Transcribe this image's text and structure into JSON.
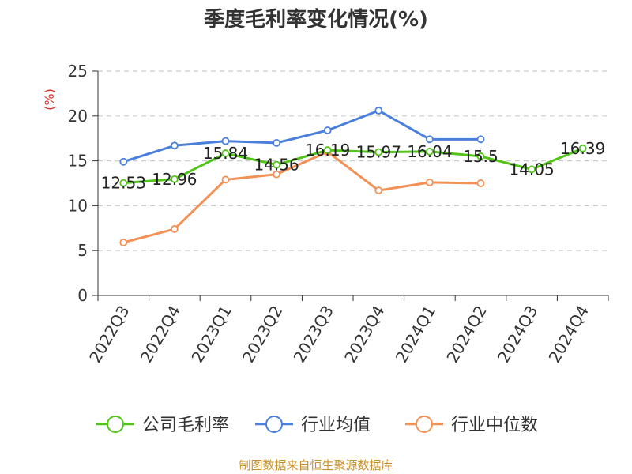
{
  "chart_data": {
    "type": "line",
    "title": "季度毛利率变化情况(%)",
    "ylabel": "(%)",
    "ylim": [
      0,
      25
    ],
    "yticks": [
      0,
      5,
      10,
      15,
      20,
      25
    ],
    "categories": [
      "2022Q3",
      "2022Q4",
      "2023Q1",
      "2023Q2",
      "2023Q3",
      "2023Q4",
      "2024Q1",
      "2024Q2",
      "2024Q3",
      "2024Q4"
    ],
    "grid": true,
    "legend_position": "bottom",
    "series": [
      {
        "name": "公司毛利率",
        "color": "#52c41a",
        "values": [
          12.53,
          12.96,
          15.84,
          14.56,
          16.19,
          15.97,
          16.04,
          15.5,
          14.05,
          16.39
        ],
        "labels": [
          "12.53",
          "12.96",
          "15.84",
          "14.56",
          "16.19",
          "15.97",
          "16.04",
          "15.5",
          "14.05",
          "16.39"
        ]
      },
      {
        "name": "行业均值",
        "color": "#4a7fdc",
        "values": [
          14.9,
          16.7,
          17.2,
          17.0,
          18.4,
          20.6,
          17.4,
          17.4,
          null,
          null
        ]
      },
      {
        "name": "行业中位数",
        "color": "#f39055",
        "values": [
          5.9,
          7.4,
          12.9,
          13.5,
          16.0,
          11.7,
          12.6,
          12.5,
          null,
          null
        ]
      }
    ],
    "source": "制图数据来自恒生聚源数据库",
    "colors": {
      "unit": "#d9342b",
      "source": "#c8902a",
      "axis": "#333333",
      "grid": "#cccccc"
    }
  }
}
